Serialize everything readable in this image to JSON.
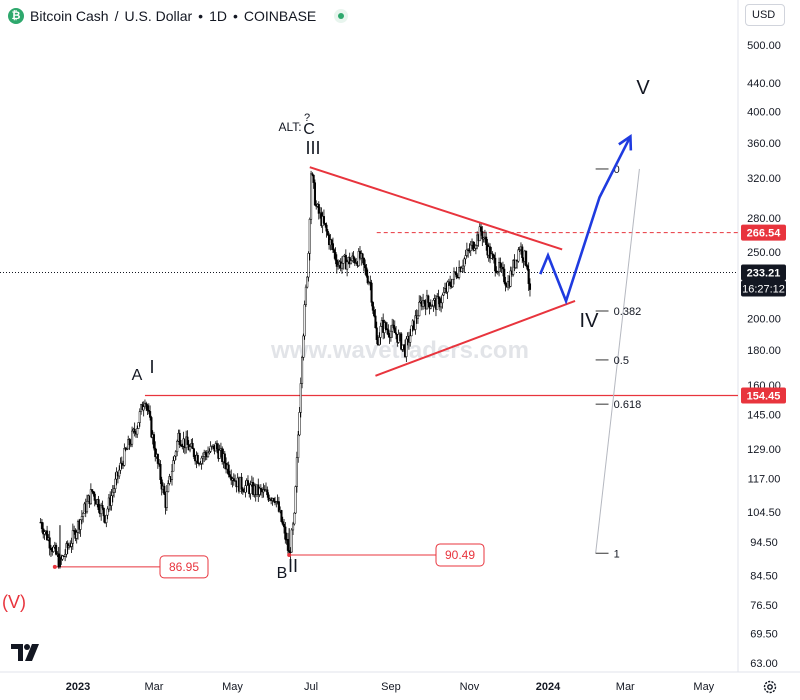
{
  "header": {
    "symbol": "Bitcoin Cash",
    "separator": "/",
    "quote": "U.S. Dollar",
    "interval": "1D",
    "exchange": "COINBASE",
    "dot": "•"
  },
  "currency_button": "USD",
  "watermark": "www.wavetraders.com",
  "colors": {
    "candle": "#000000",
    "trendline": "#e8343d",
    "projection": "#1f3be0",
    "fib": "#555555",
    "tag_bg": "#e8343d",
    "price_tag_bg": "#131722"
  },
  "price_tags": {
    "resistance": "266.54",
    "last": "233.21",
    "countdown": "16:27:12",
    "support": "154.45"
  },
  "callouts": [
    {
      "text": "86.95",
      "price": 86.95
    },
    {
      "text": "90.49",
      "price": 90.49
    }
  ],
  "wave_labels": {
    "V_paren": "(V)",
    "A": "A",
    "I": "I",
    "B": "B",
    "II": "II",
    "alt": "ALT:",
    "C": "C",
    "question": "?",
    "III": "III",
    "IV": "IV",
    "V": "V"
  },
  "fib_labels": [
    "0",
    "0.382",
    "0.5",
    "0.618",
    "1"
  ],
  "chart_data": {
    "type": "candlestick",
    "title": "Bitcoin Cash / U.S. Dollar • 1D • COINBASE",
    "yscale": "log",
    "ylim": [
      58,
      620
    ],
    "y_ticks": [
      "500.00",
      "440.00",
      "400.00",
      "360.00",
      "320.00",
      "280.00",
      "250.00",
      "220.00",
      "200.00",
      "180.00",
      "160.00",
      "145.00",
      "129.00",
      "117.00",
      "104.50",
      "94.50",
      "84.50",
      "76.50",
      "69.50",
      "63.00"
    ],
    "x_ticks": [
      "2023",
      "Mar",
      "May",
      "Jul",
      "Sep",
      "Nov",
      "2024",
      "Mar",
      "May"
    ],
    "x_tick_dates": [
      "2023-01-01",
      "2023-03-01",
      "2023-05-01",
      "2023-07-01",
      "2023-09-01",
      "2023-11-01",
      "2024-01-01",
      "2024-03-01",
      "2024-05-01"
    ],
    "anchors": [
      {
        "date": "2022-12-03",
        "price": 101
      },
      {
        "date": "2022-12-18",
        "price": 88
      },
      {
        "date": "2022-12-28",
        "price": 96
      },
      {
        "date": "2023-01-12",
        "price": 112
      },
      {
        "date": "2023-01-22",
        "price": 103
      },
      {
        "date": "2023-02-05",
        "price": 125
      },
      {
        "date": "2023-02-16",
        "price": 140
      },
      {
        "date": "2023-02-22",
        "price": 154
      },
      {
        "date": "2023-03-03",
        "price": 125
      },
      {
        "date": "2023-03-10",
        "price": 108
      },
      {
        "date": "2023-03-20",
        "price": 135
      },
      {
        "date": "2023-04-05",
        "price": 125
      },
      {
        "date": "2023-04-18",
        "price": 130
      },
      {
        "date": "2023-05-05",
        "price": 115
      },
      {
        "date": "2023-05-20",
        "price": 112
      },
      {
        "date": "2023-06-03",
        "price": 110
      },
      {
        "date": "2023-06-10",
        "price": 98
      },
      {
        "date": "2023-06-14",
        "price": 90.5
      },
      {
        "date": "2023-06-18",
        "price": 102
      },
      {
        "date": "2023-06-24",
        "price": 180
      },
      {
        "date": "2023-06-29",
        "price": 250
      },
      {
        "date": "2023-07-01",
        "price": 327
      },
      {
        "date": "2023-07-05",
        "price": 290
      },
      {
        "date": "2023-07-12",
        "price": 270
      },
      {
        "date": "2023-07-22",
        "price": 240
      },
      {
        "date": "2023-08-08",
        "price": 245
      },
      {
        "date": "2023-08-16",
        "price": 225
      },
      {
        "date": "2023-08-21",
        "price": 185
      },
      {
        "date": "2023-08-25",
        "price": 195
      },
      {
        "date": "2023-09-05",
        "price": 190
      },
      {
        "date": "2023-09-12",
        "price": 180
      },
      {
        "date": "2023-09-25",
        "price": 212
      },
      {
        "date": "2023-10-08",
        "price": 210
      },
      {
        "date": "2023-10-20",
        "price": 230
      },
      {
        "date": "2023-11-03",
        "price": 255
      },
      {
        "date": "2023-11-10",
        "price": 268
      },
      {
        "date": "2023-11-18",
        "price": 245
      },
      {
        "date": "2023-12-01",
        "price": 225
      },
      {
        "date": "2023-12-10",
        "price": 255
      },
      {
        "date": "2023-12-16",
        "price": 240
      },
      {
        "date": "2023-12-18",
        "price": 215
      }
    ],
    "last_price": 233.21,
    "levels": [
      {
        "label": "resistance",
        "price": 266.54
      },
      {
        "label": "support",
        "price": 154.45
      },
      {
        "label": "low_V",
        "price": 86.95
      },
      {
        "label": "low_II",
        "price": 90.49
      }
    ],
    "triangle": {
      "upper": [
        {
          "date": "2023-06-30",
          "price": 332
        },
        {
          "date": "2024-01-12",
          "price": 252
        }
      ],
      "lower": [
        {
          "date": "2023-08-20",
          "price": 165
        },
        {
          "date": "2024-01-22",
          "price": 212
        }
      ]
    },
    "projection": [
      {
        "date": "2023-12-26",
        "price": 232
      },
      {
        "date": "2024-01-01",
        "price": 247
      },
      {
        "date": "2024-01-15",
        "price": 212
      },
      {
        "date": "2024-02-10",
        "price": 300
      },
      {
        "date": "2024-03-05",
        "price": 368
      }
    ],
    "fibonacci": [
      {
        "level": "0",
        "price": 330
      },
      {
        "level": "0.382",
        "price": 205
      },
      {
        "level": "0.5",
        "price": 174
      },
      {
        "level": "0.618",
        "price": 150
      },
      {
        "level": "1",
        "price": 91
      }
    ]
  }
}
